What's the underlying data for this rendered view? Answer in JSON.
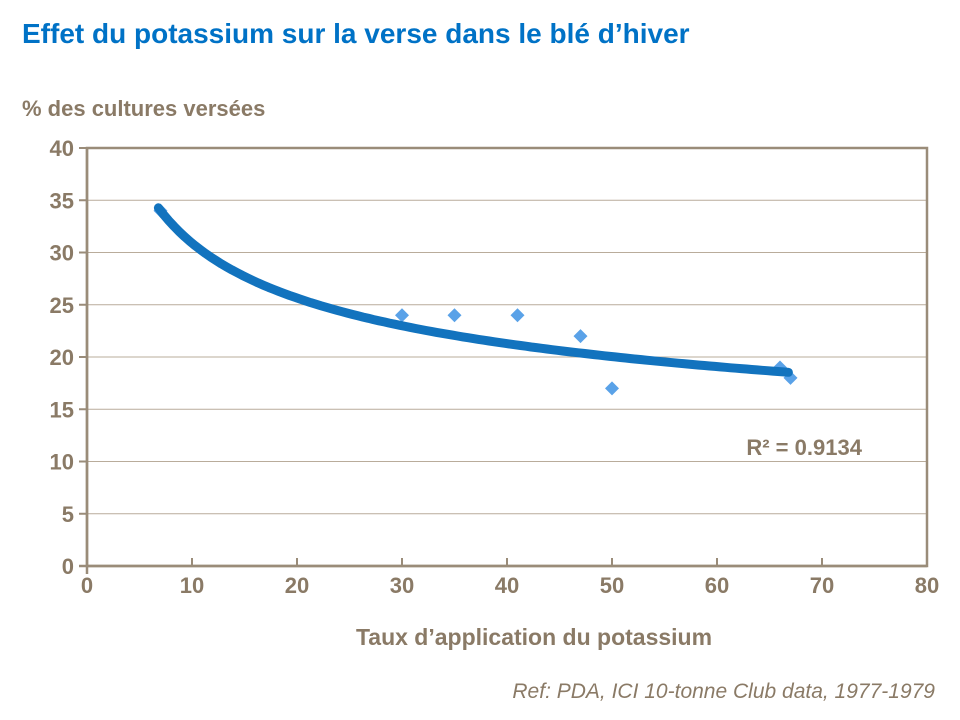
{
  "page": {
    "title": "Effet du potassium sur la verse dans le blé d’hiver",
    "footer": "Ref: PDA, ICI 10-tonne Club data, 1977-1979"
  },
  "colors": {
    "title_blue": "#0072C6",
    "axis_text_brown": "#8A7A66",
    "plot_border": "#9A8C79",
    "gridline": "#B9AC9B",
    "point_fill": "#5AA2E8",
    "trend_stroke": "#1273BE"
  },
  "chart_data": {
    "type": "scatter",
    "title": "Effet du potassium sur la verse dans le blé d’hiver",
    "xlabel": "Taux d’application du potassium",
    "ylabel": "% des cultures versées",
    "xlim": [
      0,
      80
    ],
    "ylim": [
      0,
      40
    ],
    "x_ticks": [
      0,
      10,
      20,
      30,
      40,
      50,
      60,
      70,
      80
    ],
    "y_ticks": [
      0,
      5,
      10,
      15,
      20,
      25,
      30,
      35,
      40
    ],
    "grid": "horizontal",
    "legend": "none",
    "series": [
      {
        "name": "% des cultures versées",
        "marker": "diamond",
        "points": [
          [
            7,
            34
          ],
          [
            30,
            24
          ],
          [
            35,
            24
          ],
          [
            41,
            24
          ],
          [
            47,
            22
          ],
          [
            50,
            17
          ],
          [
            66,
            19
          ],
          [
            67,
            18
          ]
        ]
      }
    ],
    "trendline": {
      "type": "power",
      "a": 57.4,
      "b": -0.269,
      "x_start": 6.8,
      "x_end": 66.8,
      "r_squared": 0.9134
    },
    "annotation": {
      "text": "R² = 0.9134",
      "x": 68.3,
      "y": 11.4
    }
  }
}
